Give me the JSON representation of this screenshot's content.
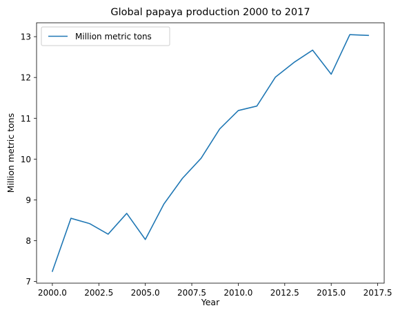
{
  "chart_data": {
    "type": "line",
    "title": "Global papaya production 2000 to 2017",
    "xlabel": "Year",
    "ylabel": "Million metric tons",
    "xlim": [
      1999.15,
      2017.85
    ],
    "ylim": [
      6.96,
      13.34
    ],
    "x_ticks": [
      2000.0,
      2002.5,
      2005.0,
      2007.5,
      2010.0,
      2012.5,
      2015.0,
      2017.5
    ],
    "x_tick_labels": [
      "2000.0",
      "2002.5",
      "2005.0",
      "2007.5",
      "2010.0",
      "2012.5",
      "2015.0",
      "2017.5"
    ],
    "y_ticks": [
      7,
      8,
      9,
      10,
      11,
      12,
      13
    ],
    "y_tick_labels": [
      "7",
      "8",
      "9",
      "10",
      "11",
      "12",
      "13"
    ],
    "grid": false,
    "legend_position": "top-left",
    "series": [
      {
        "name": "Million metric tons",
        "color": "#1f77b4",
        "x": [
          2000,
          2001,
          2002,
          2003,
          2004,
          2005,
          2006,
          2007,
          2008,
          2009,
          2010,
          2011,
          2012,
          2013,
          2014,
          2015,
          2016,
          2017
        ],
        "y": [
          7.25,
          8.55,
          8.42,
          8.16,
          8.67,
          8.03,
          8.9,
          9.53,
          10.02,
          10.74,
          11.19,
          11.3,
          12.01,
          12.37,
          12.67,
          12.08,
          13.05,
          13.03
        ]
      }
    ]
  }
}
